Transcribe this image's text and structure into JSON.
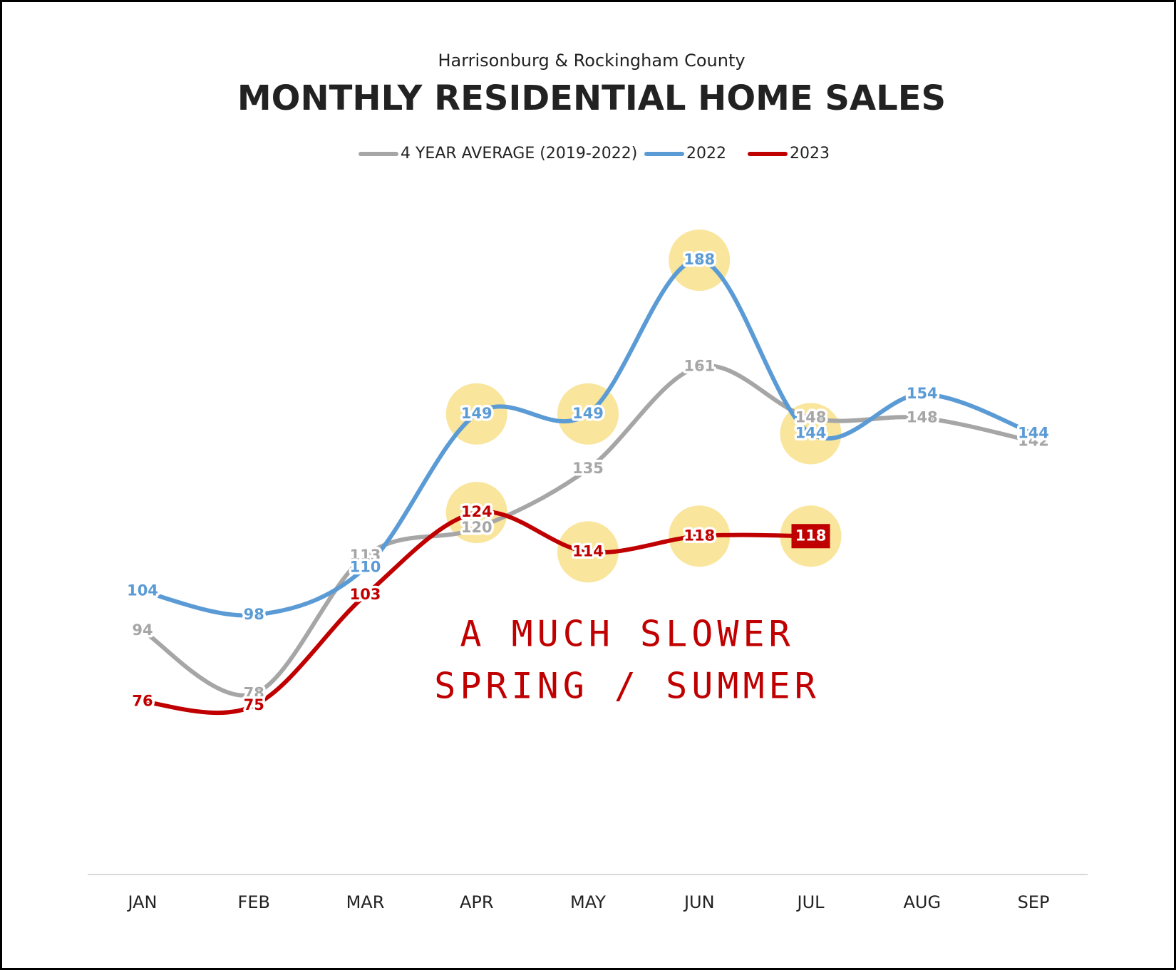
{
  "chart_data": {
    "type": "line",
    "subtitle": "Harrisonburg & Rockingham County",
    "title": "MONTHLY RESIDENTIAL HOME SALES",
    "categories": [
      "JAN",
      "FEB",
      "MAR",
      "APR",
      "MAY",
      "JUN",
      "JUL",
      "AUG",
      "SEP"
    ],
    "series": [
      {
        "name": "4 YEAR AVERAGE (2019-2022)",
        "color": "#a6a6a6",
        "values": [
          94,
          78,
          113,
          120,
          135,
          161,
          148,
          148,
          142
        ]
      },
      {
        "name": "2022",
        "color": "#5b9bd5",
        "values": [
          104,
          98,
          110,
          149,
          149,
          188,
          144,
          154,
          144
        ]
      },
      {
        "name": "2023",
        "color": "#c00000",
        "values": [
          76,
          75,
          103,
          124,
          114,
          118,
          118,
          null,
          null
        ]
      }
    ],
    "ylim": [
      32,
      220
    ],
    "legend": "top",
    "annotation": [
      "A MUCH SLOWER",
      "SPRING / SUMMER"
    ]
  }
}
